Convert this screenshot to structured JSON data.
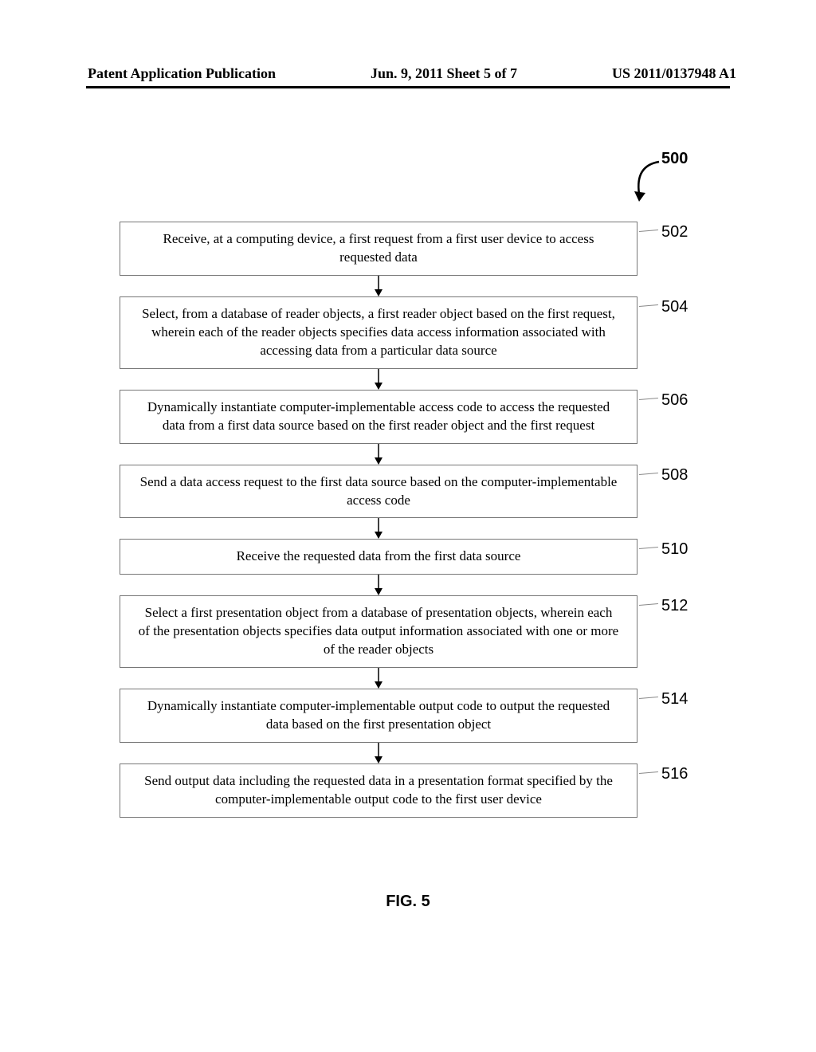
{
  "header": {
    "left": "Patent Application Publication",
    "center": "Jun. 9, 2011  Sheet 5 of 7",
    "right": "US 2011/0137948 A1"
  },
  "figure": {
    "caption": "FIG. 5",
    "ref_main": "500",
    "background_color": "#ffffff",
    "box_border_color": "#777777",
    "text_color": "#000000",
    "connector_color": "#000000",
    "leader_color": "#888888",
    "box_font_family": "Times New Roman",
    "label_font_family": "Arial",
    "box_fontsize": 17,
    "label_fontsize": 20,
    "header_fontsize": 18,
    "caption_fontsize": 20,
    "steps": [
      {
        "ref": "502",
        "text": "Receive, at a computing device, a first request from a first user device to access requested data"
      },
      {
        "ref": "504",
        "text": "Select, from a database of reader objects, a first reader object based on the first request, wherein each of the reader objects specifies data access information associated with accessing data from a particular data source"
      },
      {
        "ref": "506",
        "text": "Dynamically instantiate computer-implementable access code to access the requested data from a first data source based on the first reader object and the first request"
      },
      {
        "ref": "508",
        "text": "Send a data access request to the first data source based on the computer-implementable access code"
      },
      {
        "ref": "510",
        "text": "Receive the requested data from the first data source"
      },
      {
        "ref": "512",
        "text": "Select a first presentation object from a database of presentation objects, wherein each of the presentation objects specifies data output information associated with one or more of the reader objects"
      },
      {
        "ref": "514",
        "text": "Dynamically instantiate computer-implementable output code to output the requested data based on the first presentation object"
      },
      {
        "ref": "516",
        "text": "Send output data including the requested data in a presentation format specified by the computer-implementable output code to the first user device"
      }
    ]
  }
}
